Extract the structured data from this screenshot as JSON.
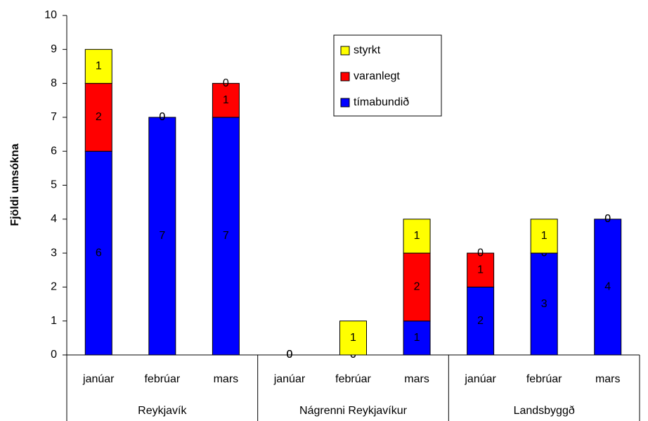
{
  "chart_data": {
    "type": "bar",
    "stacked": true,
    "ylabel": "Fjöldi umsókna",
    "categories": [
      "janúar",
      "febrúar",
      "mars",
      "janúar",
      "febrúar",
      "mars",
      "janúar",
      "febrúar",
      "mars"
    ],
    "groups": [
      "Reykjavík",
      "Nágrenni Reykjavíkur",
      "Landsbyggð"
    ],
    "series": [
      {
        "name": "tímabundið",
        "color": "#0000ff",
        "values": [
          6,
          7,
          7,
          0,
          0,
          1,
          2,
          3,
          4
        ]
      },
      {
        "name": "varanlegt",
        "color": "#ff0000",
        "values": [
          2,
          0,
          1,
          0,
          0,
          2,
          1,
          0,
          0
        ]
      },
      {
        "name": "styrkt",
        "color": "#ffff00",
        "values": [
          1,
          0,
          0,
          0,
          1,
          1,
          0,
          1,
          0
        ]
      }
    ],
    "ylim": [
      0,
      10
    ],
    "yticks": [
      0,
      1,
      2,
      3,
      4,
      5,
      6,
      7,
      8,
      9,
      10
    ],
    "legend": "upper center"
  }
}
